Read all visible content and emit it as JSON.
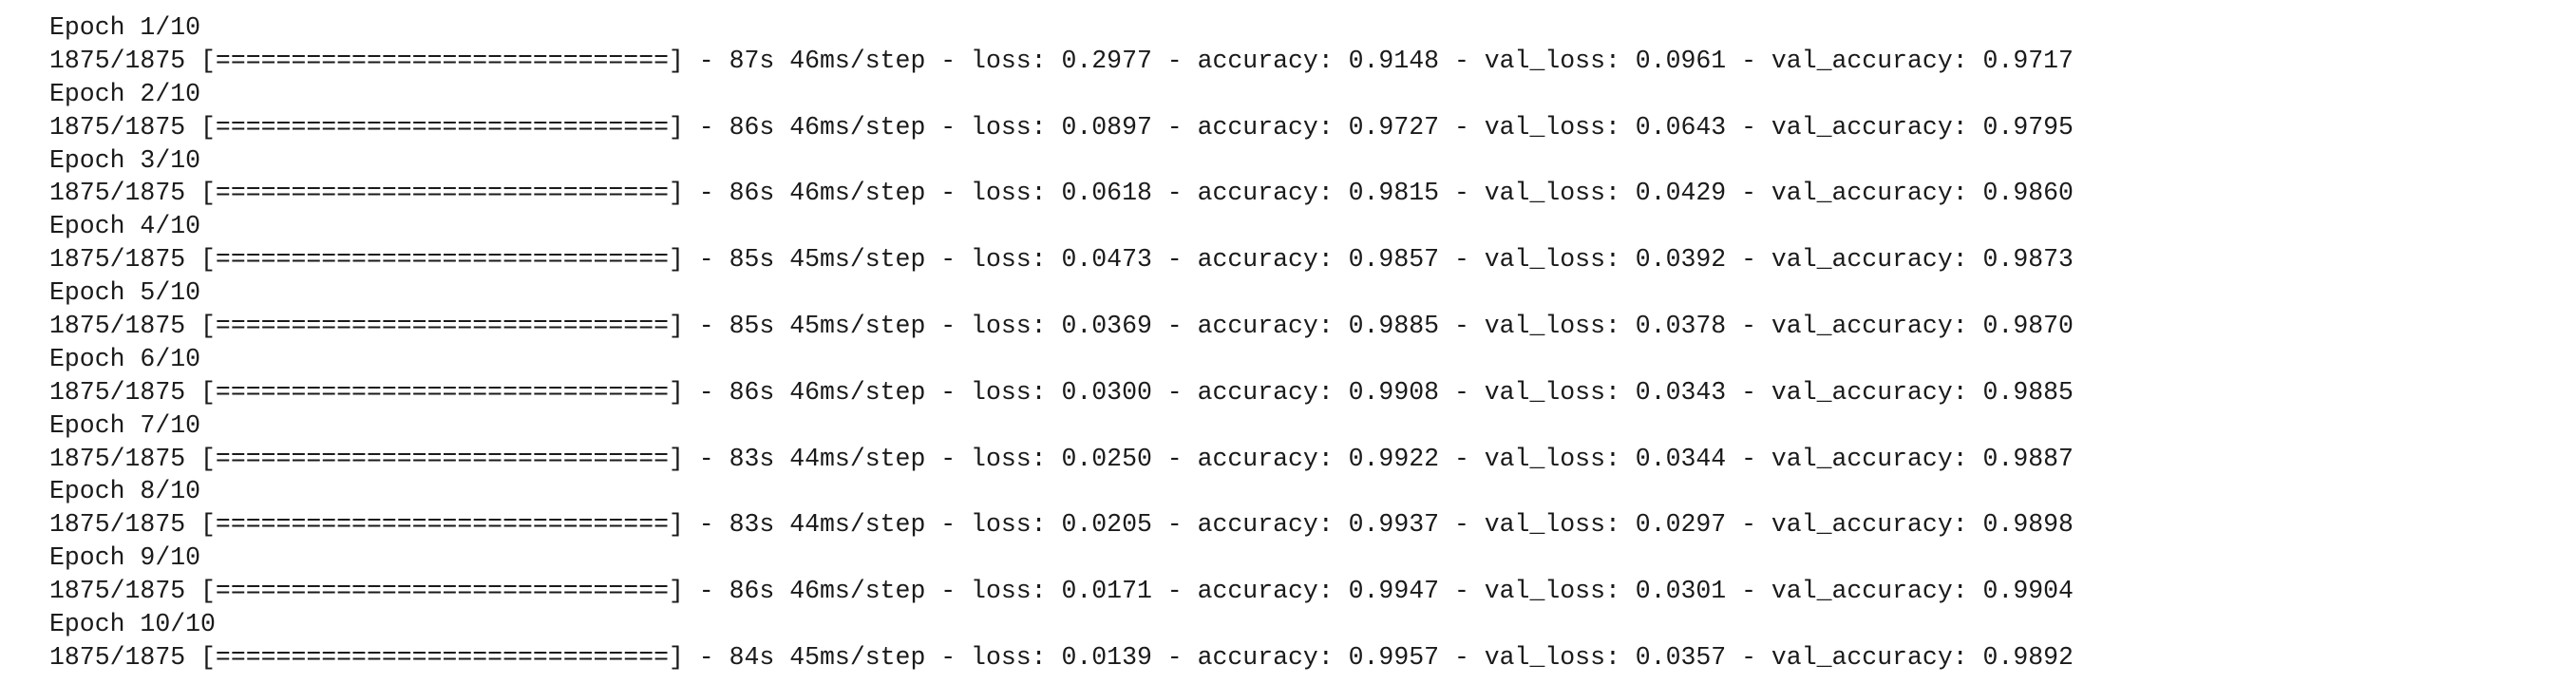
{
  "log": {
    "epochs": [
      {
        "header": "Epoch 1/10",
        "progress": "1875/1875 [==============================] - 87s 46ms/step - loss: 0.2977 - accuracy: 0.9148 - val_loss: 0.0961 - val_accuracy: 0.9717"
      },
      {
        "header": "Epoch 2/10",
        "progress": "1875/1875 [==============================] - 86s 46ms/step - loss: 0.0897 - accuracy: 0.9727 - val_loss: 0.0643 - val_accuracy: 0.9795"
      },
      {
        "header": "Epoch 3/10",
        "progress": "1875/1875 [==============================] - 86s 46ms/step - loss: 0.0618 - accuracy: 0.9815 - val_loss: 0.0429 - val_accuracy: 0.9860"
      },
      {
        "header": "Epoch 4/10",
        "progress": "1875/1875 [==============================] - 85s 45ms/step - loss: 0.0473 - accuracy: 0.9857 - val_loss: 0.0392 - val_accuracy: 0.9873"
      },
      {
        "header": "Epoch 5/10",
        "progress": "1875/1875 [==============================] - 85s 45ms/step - loss: 0.0369 - accuracy: 0.9885 - val_loss: 0.0378 - val_accuracy: 0.9870"
      },
      {
        "header": "Epoch 6/10",
        "progress": "1875/1875 [==============================] - 86s 46ms/step - loss: 0.0300 - accuracy: 0.9908 - val_loss: 0.0343 - val_accuracy: 0.9885"
      },
      {
        "header": "Epoch 7/10",
        "progress": "1875/1875 [==============================] - 83s 44ms/step - loss: 0.0250 - accuracy: 0.9922 - val_loss: 0.0344 - val_accuracy: 0.9887"
      },
      {
        "header": "Epoch 8/10",
        "progress": "1875/1875 [==============================] - 83s 44ms/step - loss: 0.0205 - accuracy: 0.9937 - val_loss: 0.0297 - val_accuracy: 0.9898"
      },
      {
        "header": "Epoch 9/10",
        "progress": "1875/1875 [==============================] - 86s 46ms/step - loss: 0.0171 - accuracy: 0.9947 - val_loss: 0.0301 - val_accuracy: 0.9904"
      },
      {
        "header": "Epoch 10/10",
        "progress": "1875/1875 [==============================] - 84s 45ms/step - loss: 0.0139 - accuracy: 0.9957 - val_loss: 0.0357 - val_accuracy: 0.9892"
      }
    ]
  }
}
